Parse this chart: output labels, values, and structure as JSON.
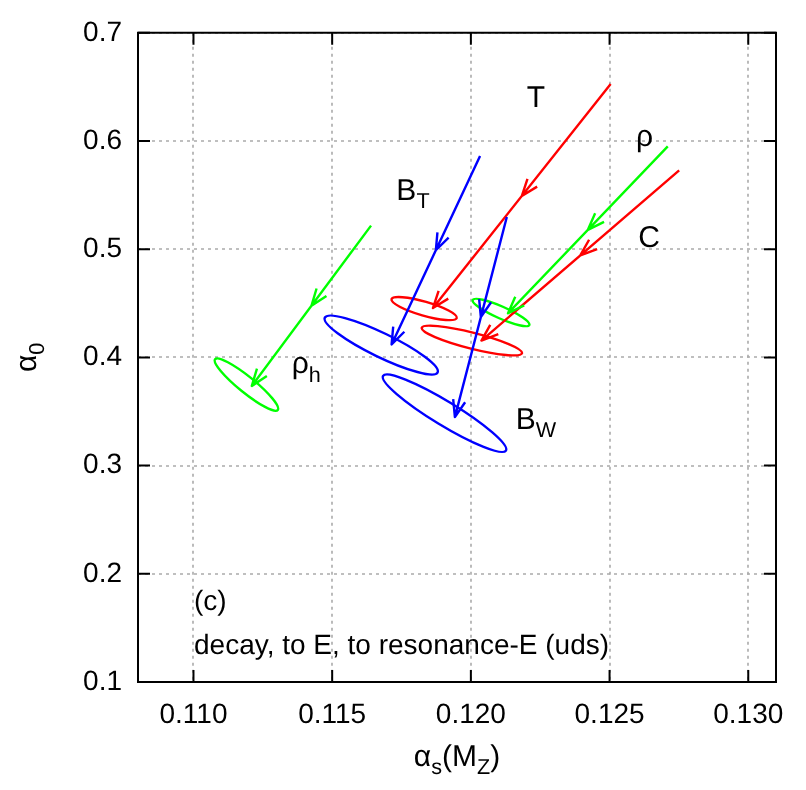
{
  "chart_data": {
    "type": "line",
    "xlabel": "α$_{s}$(M$_{Z}$)",
    "ylabel": "α$_{0}$",
    "xlim": [
      0.108,
      0.131
    ],
    "ylim": [
      0.1,
      0.7
    ],
    "xticks": [
      {
        "value": 0.11,
        "label": "0.110"
      },
      0.115,
      {
        "value": 0.12,
        "label": "0.120"
      },
      0.125,
      {
        "value": 0.13,
        "label": "0.130"
      }
    ],
    "yticks": [
      0.1,
      0.2,
      0.3,
      0.4,
      0.5,
      0.6,
      0.7
    ],
    "grid": true,
    "annotations": [
      "T",
      "C",
      "ρ",
      "B$_{T}$",
      "B$_{W}$",
      "ρ$_{h}$",
      "(c)",
      "decay, to E, to resonance-E (uds)"
    ]
  }
}
